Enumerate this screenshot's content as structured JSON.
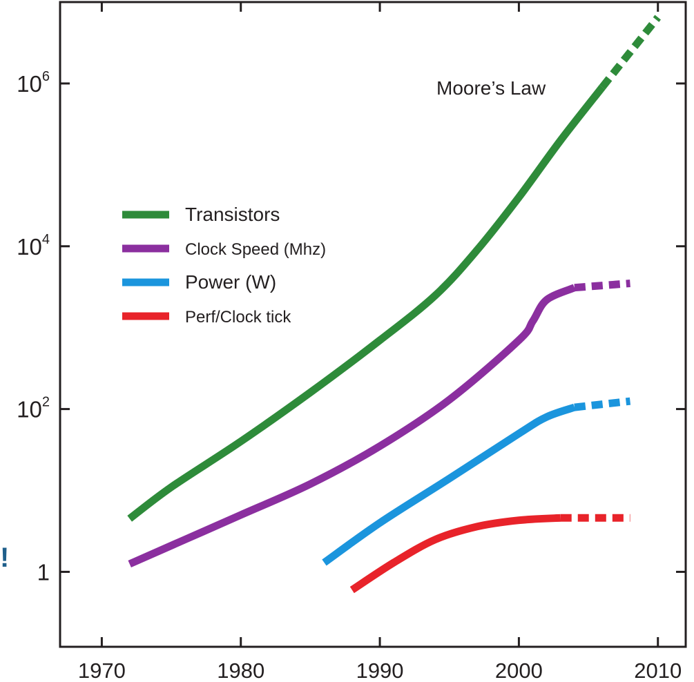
{
  "chart_data": {
    "type": "line",
    "title": "",
    "xlabel": "",
    "ylabel": "",
    "x_ticks": [
      "1970",
      "1980",
      "1990",
      "2000",
      "2010"
    ],
    "y_ticks": [
      {
        "value": 1,
        "base": "1",
        "exp": ""
      },
      {
        "value": 100,
        "base": "10",
        "exp": "2"
      },
      {
        "value": 10000,
        "base": "10",
        "exp": "4"
      },
      {
        "value": 1000000,
        "base": "10",
        "exp": "6"
      }
    ],
    "xlim": [
      1967,
      2012
    ],
    "ylim": [
      0.12,
      10000000
    ],
    "y_scale": "log",
    "grid": false,
    "legend_position": "upper-left",
    "annotation": "Moore’s Law",
    "series": [
      {
        "name": "Transistors",
        "color": "#2e8b3a",
        "points": [
          [
            1972,
            4.5
          ],
          [
            1975,
            11
          ],
          [
            1980,
            40
          ],
          [
            1985,
            160
          ],
          [
            1990,
            700
          ],
          [
            1994,
            2500
          ],
          [
            1997,
            9000
          ],
          [
            2000,
            40000
          ],
          [
            2003,
            200000
          ],
          [
            2006,
            900000
          ]
        ],
        "projected": [
          [
            2006,
            900000
          ],
          [
            2010,
            6500000
          ]
        ]
      },
      {
        "name": "Clock Speed (Mhz)",
        "color": "#8b2f9f",
        "points": [
          [
            1972,
            1.25
          ],
          [
            1976,
            2.5
          ],
          [
            1980,
            5
          ],
          [
            1985,
            12
          ],
          [
            1990,
            35
          ],
          [
            1995,
            130
          ],
          [
            2000,
            700
          ],
          [
            2001,
            1200
          ],
          [
            2002,
            2200
          ],
          [
            2004,
            3100
          ]
        ],
        "projected": [
          [
            2004,
            3100
          ],
          [
            2008,
            3500
          ]
        ]
      },
      {
        "name": "Power (W)",
        "color": "#1b95dd",
        "points": [
          [
            1986,
            1.3
          ],
          [
            1990,
            4
          ],
          [
            1995,
            14
          ],
          [
            2000,
            50
          ],
          [
            2002,
            80
          ],
          [
            2004,
            105
          ]
        ],
        "projected": [
          [
            2004,
            105
          ],
          [
            2008,
            125
          ]
        ]
      },
      {
        "name": "Perf/Clock tick",
        "color": "#e8232a",
        "points": [
          [
            1988,
            0.6
          ],
          [
            1991,
            1.3
          ],
          [
            1994,
            2.5
          ],
          [
            1997,
            3.6
          ],
          [
            2000,
            4.3
          ],
          [
            2003,
            4.6
          ]
        ],
        "projected": [
          [
            2003,
            4.6
          ],
          [
            2008,
            4.6
          ]
        ]
      }
    ]
  },
  "margin_mark": "!"
}
